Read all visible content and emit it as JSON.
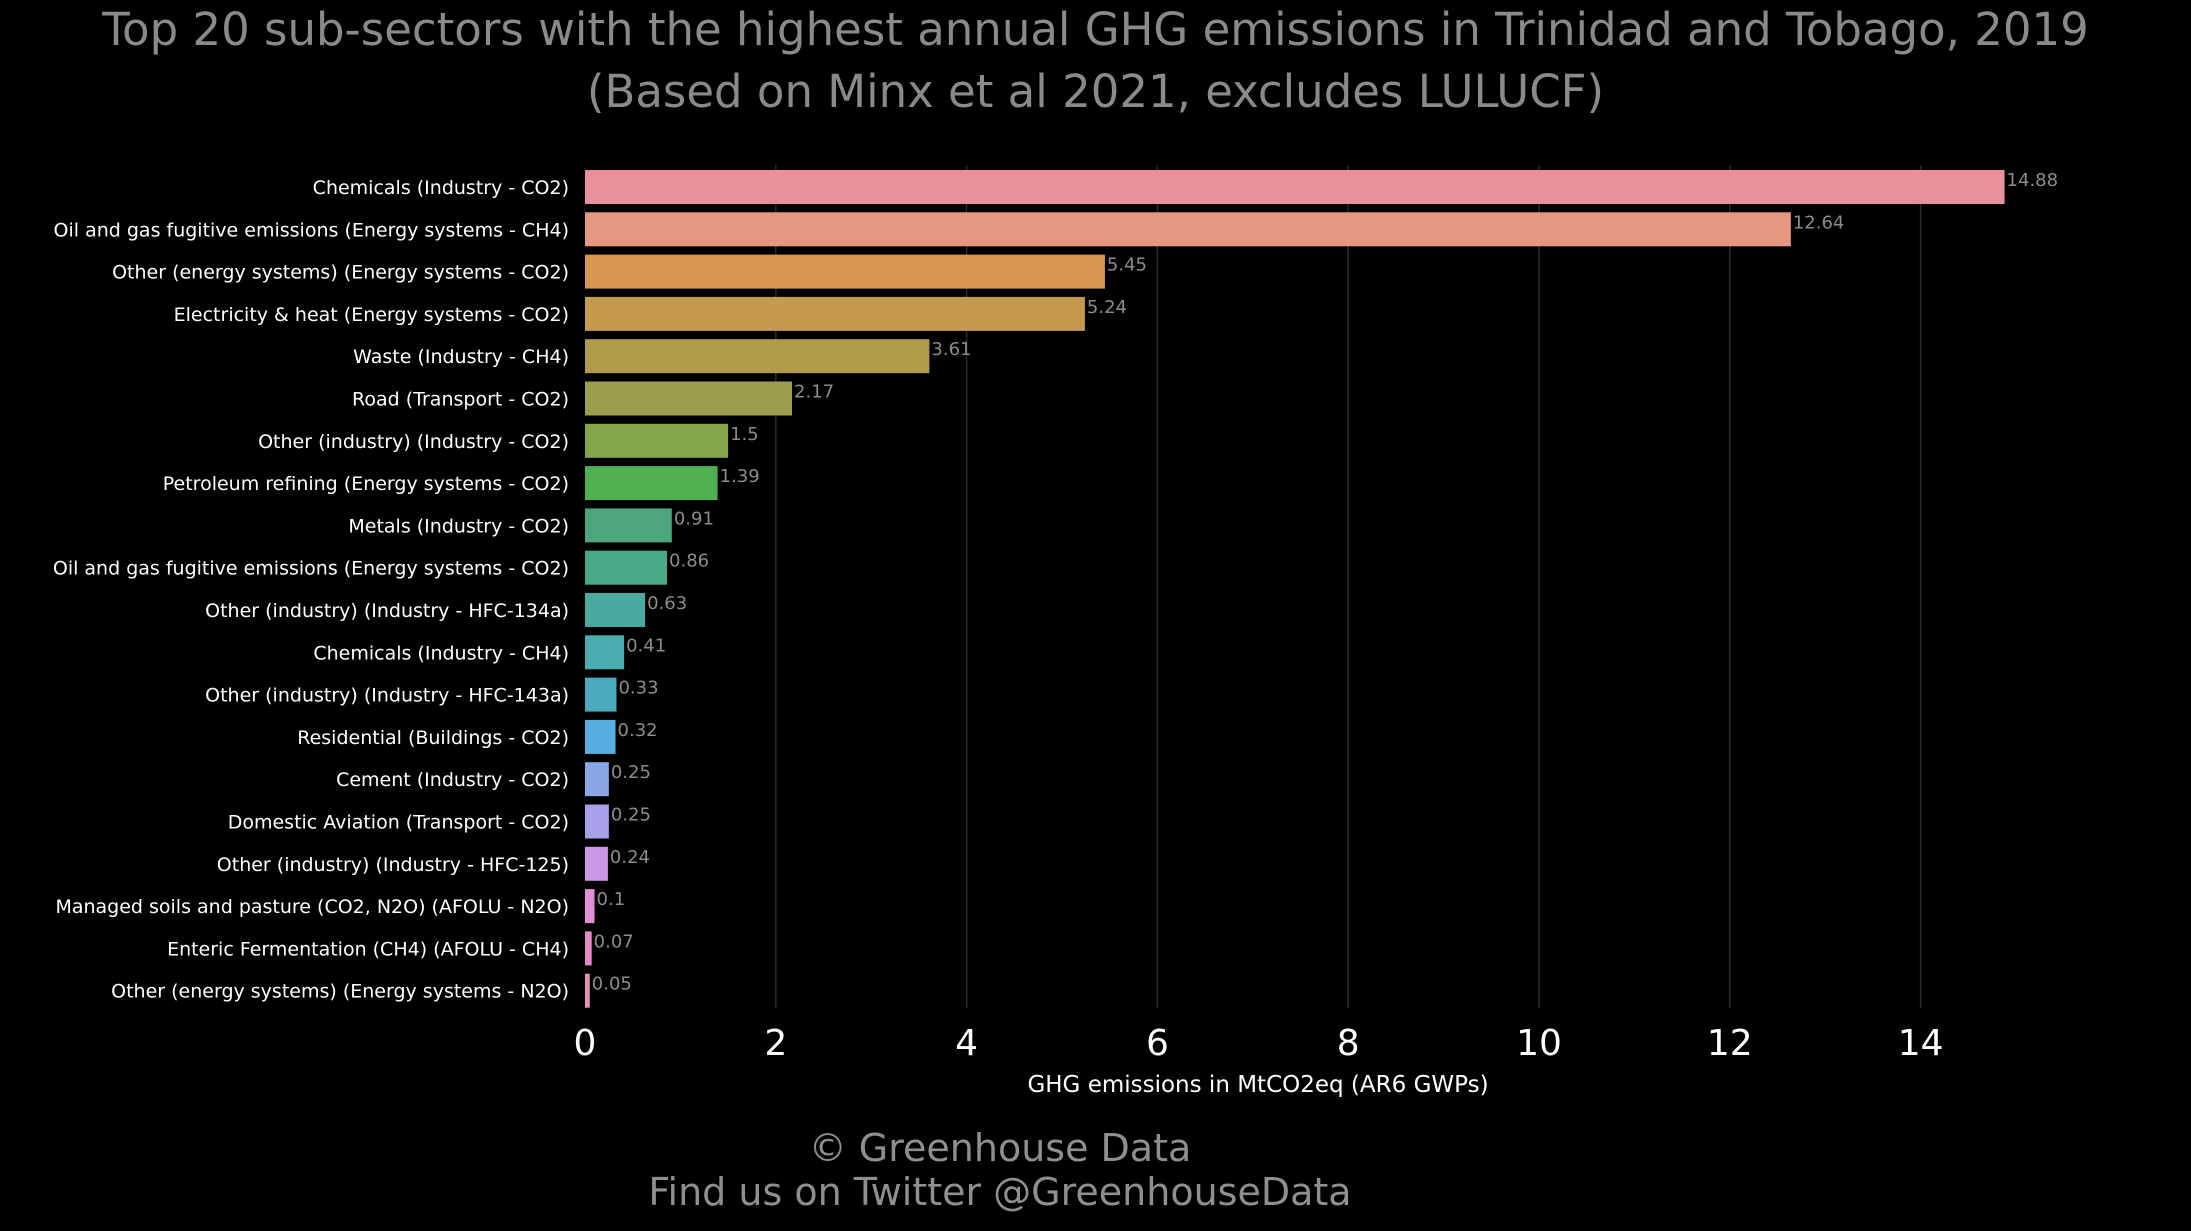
{
  "header": {
    "title_line1": "Top 20 sub-sectors with the highest annual GHG emissions in Trinidad and Tobago, 2019",
    "title_line2": "(Based on Minx et al 2021, excludes LULUCF)"
  },
  "footer": {
    "credit_line1": "© Greenhouse Data",
    "credit_line2": "Find us on Twitter @GreenhouseData"
  },
  "chart_data": {
    "type": "bar",
    "orientation": "horizontal",
    "title": "Top 20 sub-sectors with the highest annual GHG emissions in Trinidad and Tobago, 2019",
    "subtitle": "(Based on Minx et al 2021, excludes LULUCF)",
    "xlabel": "GHG emissions in MtCO2eq (AR6 GWPs)",
    "ylabel": "",
    "xlim": [
      0,
      15.5
    ],
    "xticks": [
      "0",
      "2",
      "4",
      "6",
      "8",
      "10",
      "12",
      "14"
    ],
    "grid": "vertical",
    "categories": [
      "Chemicals (Industry - CO2)",
      "Oil and gas fugitive emissions (Energy systems - CH4)",
      "Other (energy systems) (Energy systems - CO2)",
      "Electricity & heat (Energy systems - CO2)",
      "Waste (Industry - CH4)",
      "Road (Transport - CO2)",
      "Other (industry) (Industry - CO2)",
      "Petroleum refining (Energy systems - CO2)",
      "Metals (Industry - CO2)",
      "Oil and gas fugitive emissions (Energy systems - CO2)",
      "Other (industry) (Industry - HFC-134a)",
      "Chemicals (Industry - CH4)",
      "Other (industry) (Industry - HFC-143a)",
      "Residential (Buildings - CO2)",
      "Cement (Industry - CO2)",
      "Domestic Aviation (Transport - CO2)",
      "Other (industry) (Industry - HFC-125)",
      "Managed soils and pasture (CO2, N2O) (AFOLU - N2O)",
      "Enteric Fermentation (CH4) (AFOLU - CH4)",
      "Other (energy systems) (Energy systems - N2O)"
    ],
    "values": [
      14.88,
      12.64,
      5.45,
      5.24,
      3.61,
      2.17,
      1.5,
      1.39,
      0.91,
      0.86,
      0.63,
      0.41,
      0.33,
      0.32,
      0.25,
      0.25,
      0.24,
      0.1,
      0.07,
      0.05
    ],
    "value_labels": [
      "14.88",
      "12.64",
      "5.45",
      "5.24",
      "3.61",
      "2.17",
      "1.5",
      "1.39",
      "0.91",
      "0.86",
      "0.63",
      "0.41",
      "0.33",
      "0.32",
      "0.25",
      "0.25",
      "0.24",
      "0.1",
      "0.07",
      "0.05"
    ],
    "colors": [
      "#e8919c",
      "#e59782",
      "#d6964f",
      "#c59a4f",
      "#b09b4a",
      "#9a9f4b",
      "#84a64a",
      "#4fb051",
      "#4ca57c",
      "#4aa98b",
      "#49ab9f",
      "#4aadb0",
      "#4aa9bd",
      "#56aee0",
      "#8aa6e4",
      "#a8a0e8",
      "#cc98e6",
      "#e08fd9",
      "#e38cc8",
      "#e692b7"
    ]
  },
  "colors": {
    "background": "#000000",
    "title": "#8a8a8a",
    "gridline": "#2b2b2b",
    "value_label": "#8c8c8c"
  }
}
